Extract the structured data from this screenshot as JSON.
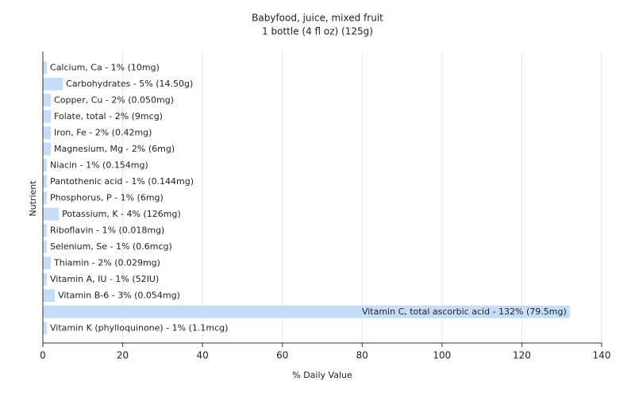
{
  "chart_data": {
    "type": "bar",
    "orientation": "horizontal",
    "title": "Babyfood, juice, mixed fruit",
    "subtitle": "1 bottle (4 fl oz) (125g)",
    "x_label": "% Daily Value",
    "y_label": "Nutrient",
    "categories": [
      "Calcium, Ca - 1% (10mg)",
      "Carbohydrates - 5% (14.50g)",
      "Copper, Cu - 2% (0.050mg)",
      "Folate, total - 2% (9mcg)",
      "Iron, Fe - 2% (0.42mg)",
      "Magnesium, Mg - 2% (6mg)",
      "Niacin - 1% (0.154mg)",
      "Pantothenic acid - 1% (0.144mg)",
      "Phosphorus, P - 1% (6mg)",
      "Potassium, K - 4% (126mg)",
      "Riboflavin - 1% (0.018mg)",
      "Selenium, Se - 1% (0.6mcg)",
      "Thiamin - 2% (0.029mg)",
      "Vitamin A, IU - 1% (52IU)",
      "Vitamin B-6 - 3% (0.054mg)",
      "Vitamin C, total ascorbic acid - 132% (79.5mg)",
      "Vitamin K (phylloquinone) - 1% (1.1mcg)"
    ],
    "values": [
      1,
      5,
      2,
      2,
      2,
      2,
      1,
      1,
      1,
      4,
      1,
      1,
      2,
      1,
      3,
      132,
      1
    ],
    "color": "#c6ddf8",
    "xlim": [
      0,
      140
    ],
    "xticks": [
      0,
      20,
      40,
      60,
      80,
      100,
      120,
      140
    ],
    "grid": true
  }
}
